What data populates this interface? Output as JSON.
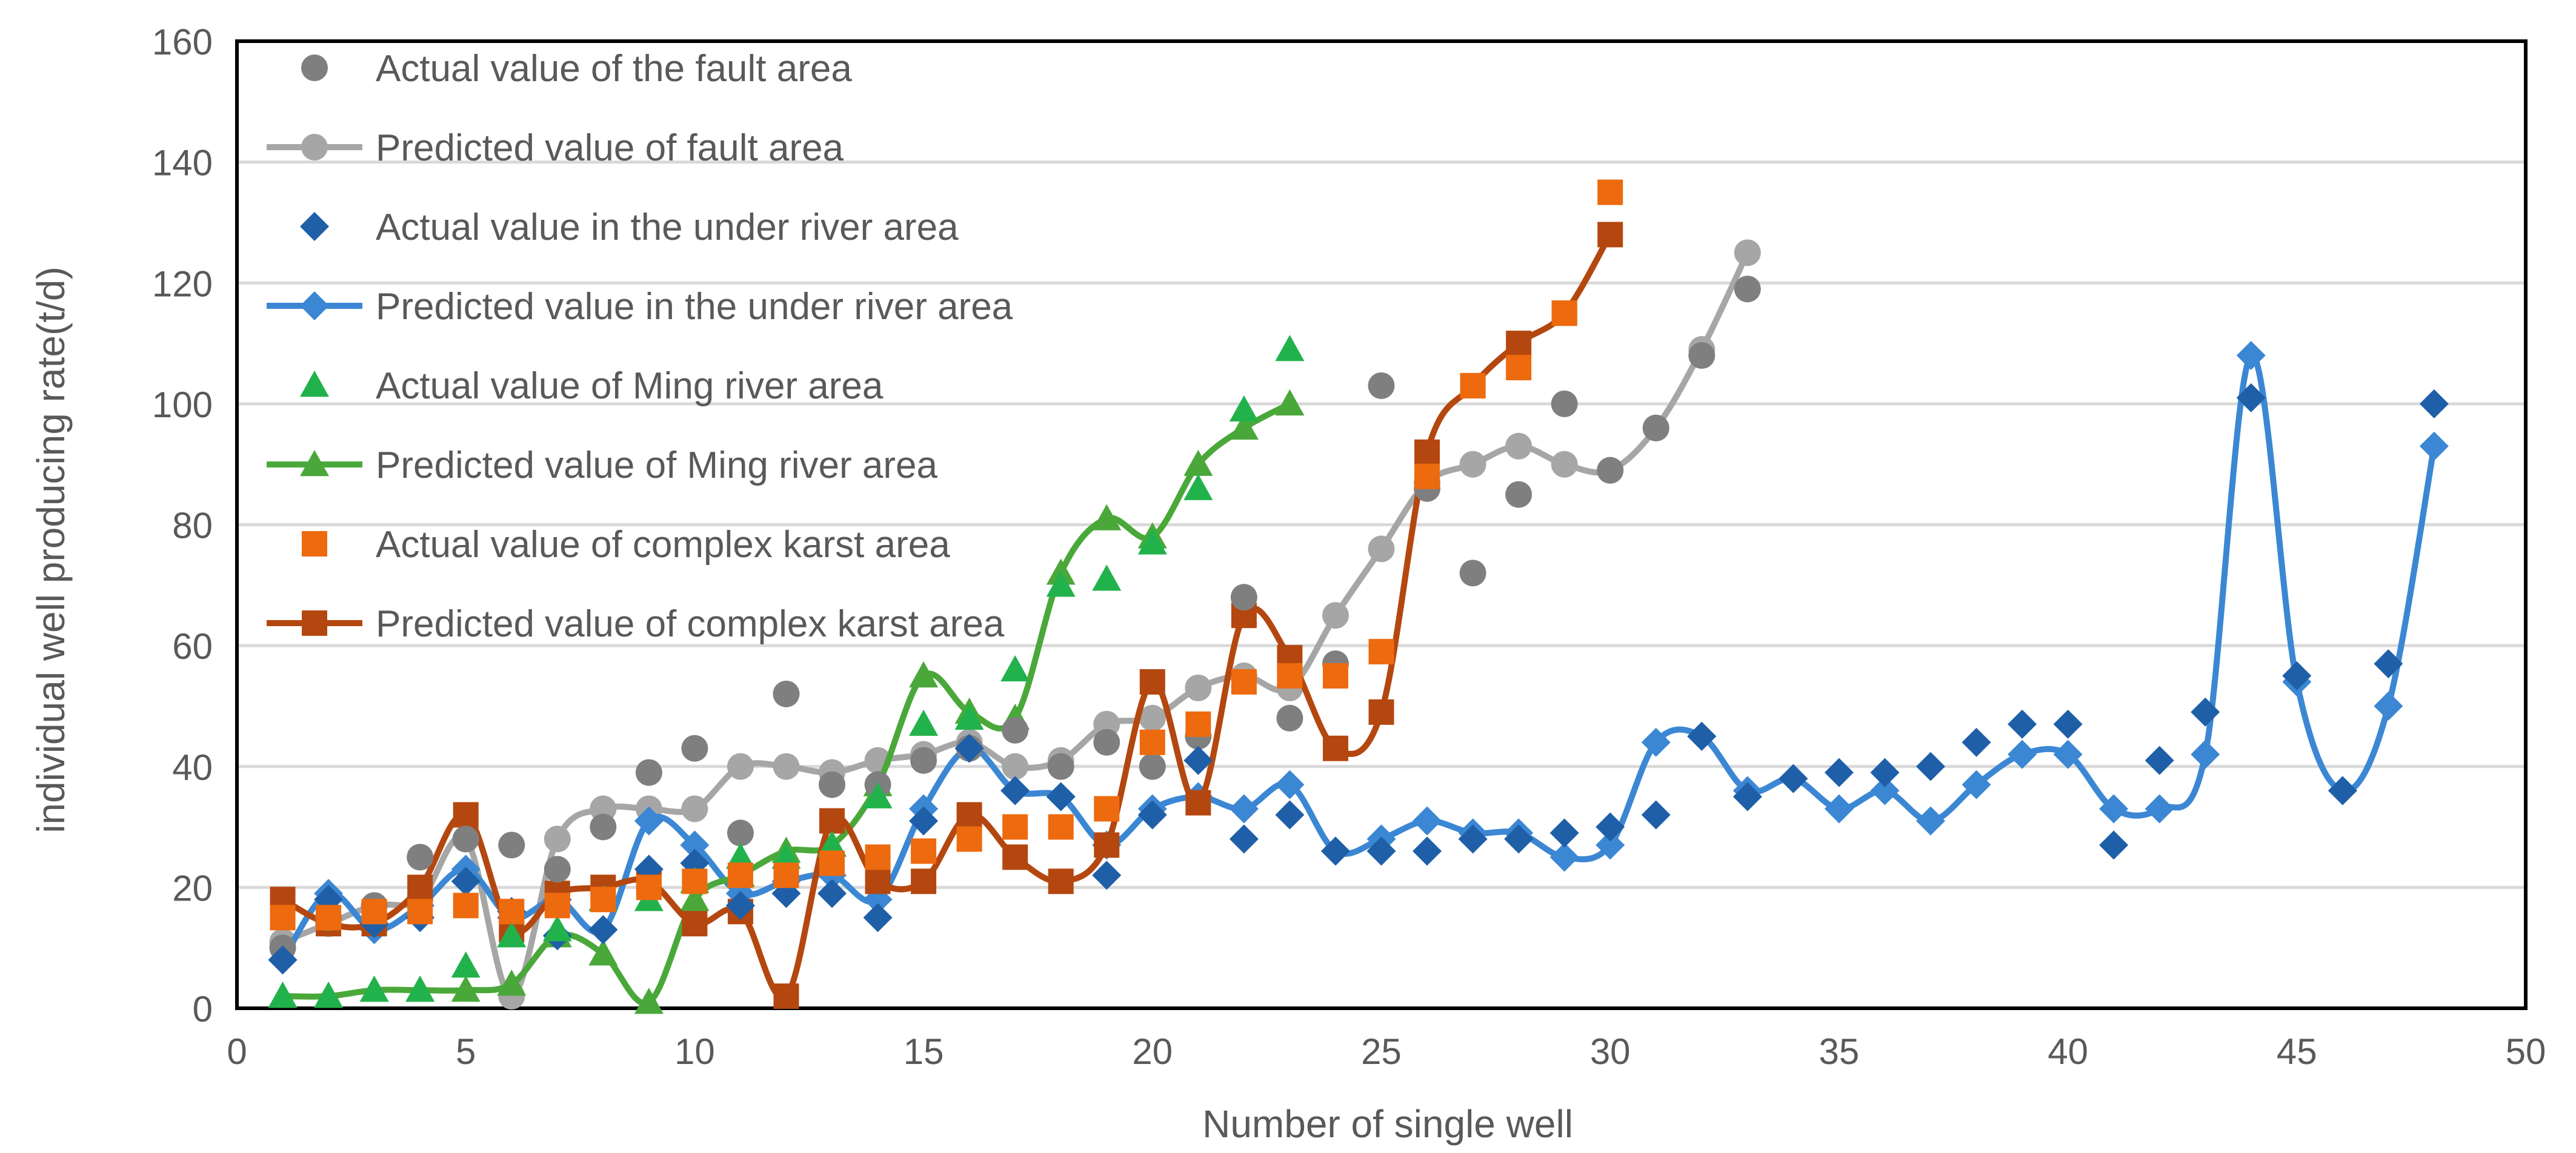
{
  "chart_data": {
    "type": "scatter",
    "title": "",
    "xlabel": "Number of single well",
    "ylabel": "individual well producing rate(t/d)",
    "xlim": [
      0,
      50
    ],
    "ylim": [
      0,
      160
    ],
    "xticks": [
      0,
      5,
      10,
      15,
      20,
      25,
      30,
      35,
      40,
      45,
      50
    ],
    "yticks": [
      0,
      20,
      40,
      60,
      80,
      100,
      120,
      140,
      160
    ],
    "grid": "horizontal",
    "legend_position": "top-left",
    "series": [
      {
        "name": "Actual value of the fault area",
        "marker": "circle",
        "line": false,
        "color": "#7f7f7f",
        "x": [
          1,
          2,
          3,
          4,
          5,
          6,
          7,
          8,
          9,
          10,
          11,
          12,
          13,
          14,
          15,
          16,
          17,
          18,
          19,
          20,
          21,
          22,
          23,
          24,
          25,
          26,
          27,
          28,
          29,
          30,
          31,
          32,
          33
        ],
        "y": [
          10,
          15,
          17,
          25,
          28,
          27,
          23,
          30,
          39,
          43,
          29,
          52,
          37,
          37,
          41,
          43,
          46,
          40,
          44,
          40,
          45,
          68,
          48,
          57,
          103,
          86,
          72,
          85,
          100,
          89,
          96,
          108,
          119
        ]
      },
      {
        "name": "Predicted value of fault area",
        "marker": "circle",
        "line": true,
        "color": "#a6a6a6",
        "x": [
          1,
          2,
          3,
          4,
          5,
          6,
          7,
          8,
          9,
          10,
          11,
          12,
          13,
          14,
          15,
          16,
          17,
          18,
          19,
          20,
          21,
          22,
          23,
          24,
          25,
          26,
          27,
          28,
          29,
          30,
          31,
          32,
          33
        ],
        "y": [
          11,
          14,
          17,
          18,
          28,
          2,
          28,
          33,
          33,
          33,
          40,
          40,
          39,
          41,
          42,
          44,
          40,
          41,
          47,
          48,
          53,
          55,
          53,
          65,
          76,
          87,
          90,
          93,
          90,
          89,
          96,
          109,
          125
        ]
      },
      {
        "name": "Actual value in the under river area",
        "marker": "diamond",
        "line": false,
        "color": "#1f5fa8",
        "x": [
          1,
          2,
          3,
          4,
          5,
          6,
          7,
          8,
          9,
          10,
          11,
          12,
          13,
          14,
          15,
          16,
          17,
          18,
          19,
          20,
          21,
          22,
          23,
          24,
          25,
          26,
          27,
          28,
          29,
          30,
          31,
          32,
          33,
          34,
          35,
          36,
          37,
          38,
          39,
          40,
          41,
          42,
          43,
          44,
          45,
          46,
          47,
          48
        ],
        "y": [
          8,
          18,
          14,
          15,
          21,
          16,
          12,
          13,
          23,
          24,
          17,
          19,
          19,
          15,
          31,
          43,
          36,
          35,
          22,
          32,
          41,
          28,
          32,
          26,
          26,
          26,
          28,
          28,
          29,
          30,
          32,
          45,
          35,
          38,
          39,
          39,
          40,
          44,
          47,
          47,
          27,
          41,
          49,
          101,
          55,
          36,
          57,
          100
        ]
      },
      {
        "name": "Predicted value in the under river area",
        "marker": "diamond",
        "line": true,
        "color": "#3b87d3",
        "x": [
          1,
          2,
          3,
          4,
          5,
          6,
          7,
          8,
          9,
          10,
          11,
          12,
          13,
          14,
          15,
          16,
          17,
          18,
          19,
          20,
          21,
          22,
          23,
          24,
          25,
          26,
          27,
          28,
          29,
          30,
          31,
          32,
          33,
          34,
          35,
          36,
          37,
          38,
          39,
          40,
          41,
          42,
          43,
          44,
          45,
          46,
          47,
          48
        ],
        "y": [
          8,
          19,
          13,
          17,
          23,
          15,
          18,
          13,
          31,
          27,
          19,
          21,
          22,
          18,
          33,
          43,
          36,
          35,
          27,
          33,
          35,
          33,
          37,
          26,
          28,
          31,
          29,
          29,
          25,
          27,
          44,
          45,
          36,
          38,
          33,
          36,
          31,
          37,
          42,
          42,
          33,
          33,
          42,
          108,
          54,
          36,
          50,
          93
        ]
      },
      {
        "name": "Actual value of Ming river area",
        "marker": "triangle",
        "line": false,
        "color": "#22b24c",
        "x": [
          1,
          2,
          3,
          4,
          5,
          6,
          7,
          8,
          9,
          10,
          11,
          12,
          13,
          14,
          15,
          16,
          17,
          18,
          19,
          20,
          21,
          22,
          23
        ],
        "y": [
          2,
          2,
          3,
          3,
          7,
          12,
          13,
          18,
          18,
          21,
          25,
          25,
          27,
          35,
          47,
          48,
          56,
          70,
          71,
          77,
          86,
          99,
          109
        ]
      },
      {
        "name": "Predicted value of Ming river area",
        "marker": "triangle",
        "line": true,
        "color": "#4aa83a",
        "x": [
          1,
          2,
          3,
          4,
          5,
          6,
          7,
          8,
          9,
          10,
          11,
          12,
          13,
          14,
          15,
          16,
          17,
          18,
          19,
          20,
          21,
          22,
          23
        ],
        "y": [
          2,
          2,
          3,
          3,
          3,
          4,
          12,
          9,
          1,
          18,
          22,
          26,
          27,
          37,
          55,
          49,
          48,
          72,
          81,
          78,
          90,
          96,
          100
        ]
      },
      {
        "name": "Actual value of complex karst area",
        "marker": "square",
        "line": false,
        "color": "#ed6a0e",
        "x": [
          1,
          2,
          3,
          4,
          5,
          6,
          7,
          8,
          9,
          10,
          11,
          12,
          13,
          14,
          15,
          16,
          17,
          18,
          19,
          20,
          21,
          22,
          23,
          24,
          25,
          26,
          27,
          28,
          29,
          30
        ],
        "y": [
          15,
          15,
          16,
          16,
          17,
          16,
          17,
          18,
          20,
          21,
          22,
          22,
          24,
          25,
          26,
          28,
          30,
          30,
          33,
          44,
          47,
          54,
          55,
          55,
          59,
          88,
          103,
          106,
          115,
          135
        ]
      },
      {
        "name": "Predicted value of complex karst area",
        "marker": "square",
        "line": true,
        "color": "#b4470f",
        "x": [
          1,
          2,
          3,
          4,
          5,
          6,
          7,
          8,
          9,
          10,
          11,
          12,
          13,
          14,
          15,
          16,
          17,
          18,
          19,
          20,
          21,
          22,
          23,
          24,
          25,
          26,
          27,
          28,
          29,
          30
        ],
        "y": [
          18,
          14,
          14,
          20,
          32,
          13,
          19,
          20,
          21,
          14,
          16,
          2,
          31,
          21,
          21,
          32,
          25,
          21,
          27,
          54,
          34,
          65,
          58,
          43,
          49,
          92,
          103,
          110,
          115,
          128
        ]
      }
    ]
  }
}
